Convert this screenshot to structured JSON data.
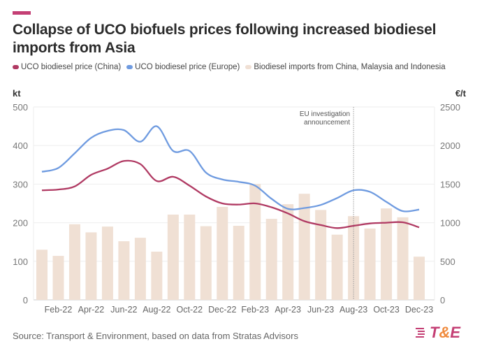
{
  "header": {
    "title": "Collapse of UCO biofuels prices following increased biodiesel imports from Asia"
  },
  "footer": {
    "source": "Source: Transport & Environment, based on data from Stratas Advisors",
    "logo_text": "T&E"
  },
  "colors": {
    "china": "#b03a63",
    "europe": "#6f9be0",
    "imports": "#f0e0d4",
    "accent": "#c43f74"
  },
  "chart_data": {
    "type": "bar+line",
    "title": "Collapse of UCO biofuels prices following increased biodiesel imports from Asia",
    "legend_position": "top-left",
    "grid": true,
    "left_axis": {
      "label": "kt",
      "range": [
        0,
        500
      ],
      "ticks": [
        "0",
        "100",
        "200",
        "300",
        "400",
        "500"
      ]
    },
    "right_axis": {
      "label": "€/t",
      "range": [
        0,
        2500
      ],
      "ticks": [
        "0",
        "500",
        "1000",
        "1500",
        "2000",
        "2500"
      ]
    },
    "x": [
      "Jan-22",
      "Feb-22",
      "Mar-22",
      "Apr-22",
      "May-22",
      "Jun-22",
      "Jul-22",
      "Aug-22",
      "Sep-22",
      "Oct-22",
      "Nov-22",
      "Dec-22",
      "Jan-23",
      "Feb-23",
      "Mar-23",
      "Apr-23",
      "May-23",
      "Jun-23",
      "Jul-23",
      "Aug-23",
      "Sep-23",
      "Oct-23",
      "Nov-23",
      "Dec-23"
    ],
    "x_tick_labels": [
      "Feb-22",
      "Apr-22",
      "Jun-22",
      "Aug-22",
      "Oct-22",
      "Dec-22",
      "Feb-23",
      "Apr-23",
      "Jun-23",
      "Aug-23",
      "Oct-23",
      "Dec-23"
    ],
    "series": [
      {
        "name": "UCO biodiesel price (China)",
        "type": "line",
        "axis": "right",
        "values": [
          1420,
          1430,
          1470,
          1620,
          1700,
          1800,
          1760,
          1540,
          1595,
          1480,
          1340,
          1250,
          1235,
          1250,
          1200,
          1120,
          1020,
          970,
          930,
          960,
          990,
          1000,
          1005,
          940
        ]
      },
      {
        "name": "UCO biodiesel price (Europe)",
        "type": "line",
        "axis": "right",
        "values": [
          1660,
          1710,
          1900,
          2100,
          2190,
          2200,
          2050,
          2250,
          1930,
          1930,
          1650,
          1560,
          1530,
          1480,
          1310,
          1180,
          1190,
          1230,
          1320,
          1420,
          1400,
          1270,
          1150,
          1170
        ]
      },
      {
        "name": "Biodiesel imports from China, Malaysia and Indonesia",
        "type": "bar",
        "axis": "left",
        "values": [
          130,
          114,
          196,
          175,
          190,
          152,
          161,
          125,
          221,
          221,
          191,
          241,
          192,
          300,
          210,
          248,
          275,
          233,
          169,
          217,
          185,
          237,
          214,
          112
        ]
      }
    ],
    "annotations": [
      {
        "x": "Aug-23",
        "text": [
          "EU investigation",
          "announcement"
        ],
        "style": "dotted-vertical-line"
      }
    ]
  }
}
